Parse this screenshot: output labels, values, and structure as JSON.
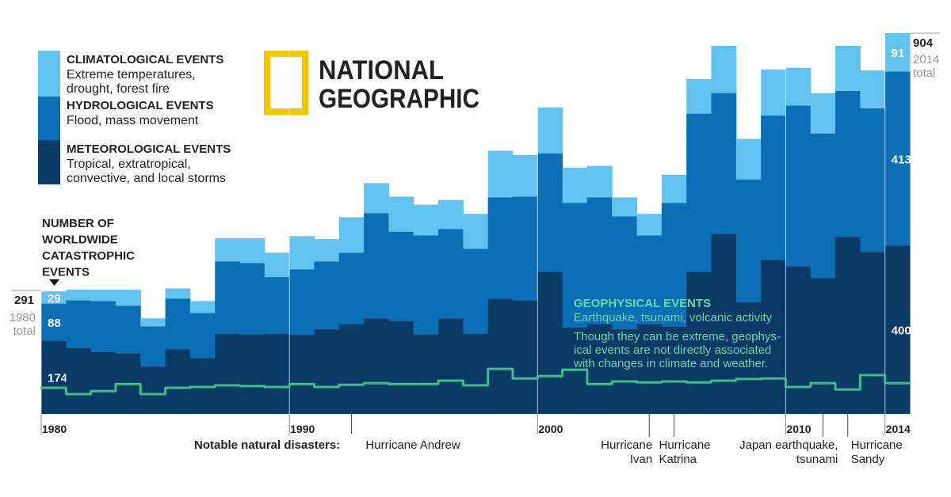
{
  "chart_data": {
    "type": "bar",
    "stacked": true,
    "brand": [
      "NATIONAL",
      "GEOGRAPHIC"
    ],
    "heading": [
      "NUMBER OF",
      "WORLDWIDE",
      "CATASTROPHIC",
      "EVENTS"
    ],
    "x": [
      1980,
      1981,
      1982,
      1983,
      1984,
      1985,
      1986,
      1987,
      1988,
      1989,
      1990,
      1991,
      1992,
      1993,
      1994,
      1995,
      1996,
      1997,
      1998,
      1999,
      2000,
      2001,
      2002,
      2003,
      2004,
      2005,
      2006,
      2007,
      2008,
      2009,
      2010,
      2011,
      2012,
      2013,
      2014
    ],
    "xlim": [
      1980,
      2015
    ],
    "xticks": [
      1980,
      1990,
      2000,
      2010,
      2014
    ],
    "series": [
      {
        "name": "METEOROLOGICAL EVENTS",
        "description": [
          "Tropical, extratropical,",
          "convective, and local storms"
        ],
        "color": "#0a3a66",
        "values": [
          174,
          156,
          148,
          144,
          113,
          154,
          133,
          191,
          189,
          191,
          188,
          201,
          214,
          227,
          221,
          189,
          227,
          191,
          274,
          270,
          338,
          206,
          214,
          201,
          214,
          208,
          338,
          428,
          265,
          366,
          351,
          323,
          420,
          385,
          400
        ]
      },
      {
        "name": "HYDROLOGICAL EVENTS",
        "description": [
          "Flood, mass movement"
        ],
        "color": "#0b6fb5",
        "values": [
          88,
          114,
          120,
          113,
          95,
          120,
          107,
          171,
          169,
          134,
          155,
          161,
          169,
          250,
          212,
          235,
          212,
          201,
          240,
          246,
          281,
          295,
          300,
          268,
          210,
          293,
          375,
          334,
          292,
          343,
          381,
          343,
          347,
          341,
          413
        ]
      },
      {
        "name": "CLIMATOLOGICAL EVENTS",
        "description": [
          "Extreme temperatures,",
          "drought, forest fire"
        ],
        "color": "#63c3f0",
        "values": [
          29,
          25,
          27,
          38,
          19,
          24,
          28,
          55,
          59,
          58,
          79,
          53,
          84,
          71,
          83,
          73,
          69,
          83,
          111,
          99,
          109,
          84,
          75,
          45,
          51,
          67,
          82,
          112,
          96,
          109,
          90,
          96,
          107,
          90,
          91
        ]
      }
    ],
    "geophysical": {
      "name": "GEOPHYSICAL EVENTS",
      "description": [
        "Earthquake, tsunami, volcanic activity"
      ],
      "color": "#3fbf86",
      "note": [
        "Though they can be extreme, geophys-",
        "ical events are not directly associated",
        "with changes in climate and weather."
      ],
      "values": [
        62,
        47,
        54,
        71,
        47,
        62,
        64,
        68,
        66,
        64,
        71,
        64,
        69,
        73,
        71,
        71,
        79,
        68,
        107,
        84,
        90,
        105,
        71,
        77,
        75,
        77,
        75,
        79,
        83,
        84,
        64,
        73,
        58,
        92,
        73
      ]
    },
    "totals": [
      {
        "value": 291,
        "year": "1980",
        "word": "total"
      },
      {
        "value": 904,
        "year": "2014",
        "word": "total"
      }
    ],
    "disasters_title": "Notable natural disasters:",
    "disasters": [
      {
        "year": 1992,
        "lines": [
          "Hurricane Andrew"
        ]
      },
      {
        "year": 2004,
        "lines": [
          "Hurricane",
          "Ivan"
        ]
      },
      {
        "year": 2005,
        "lines": [
          "Hurricane",
          "Katrina"
        ]
      },
      {
        "year": 2011,
        "lines": [
          "Japan earthquake,",
          "tsunami"
        ]
      },
      {
        "year": 2012,
        "lines": [
          "Hurricane",
          "Sandy"
        ]
      }
    ]
  }
}
